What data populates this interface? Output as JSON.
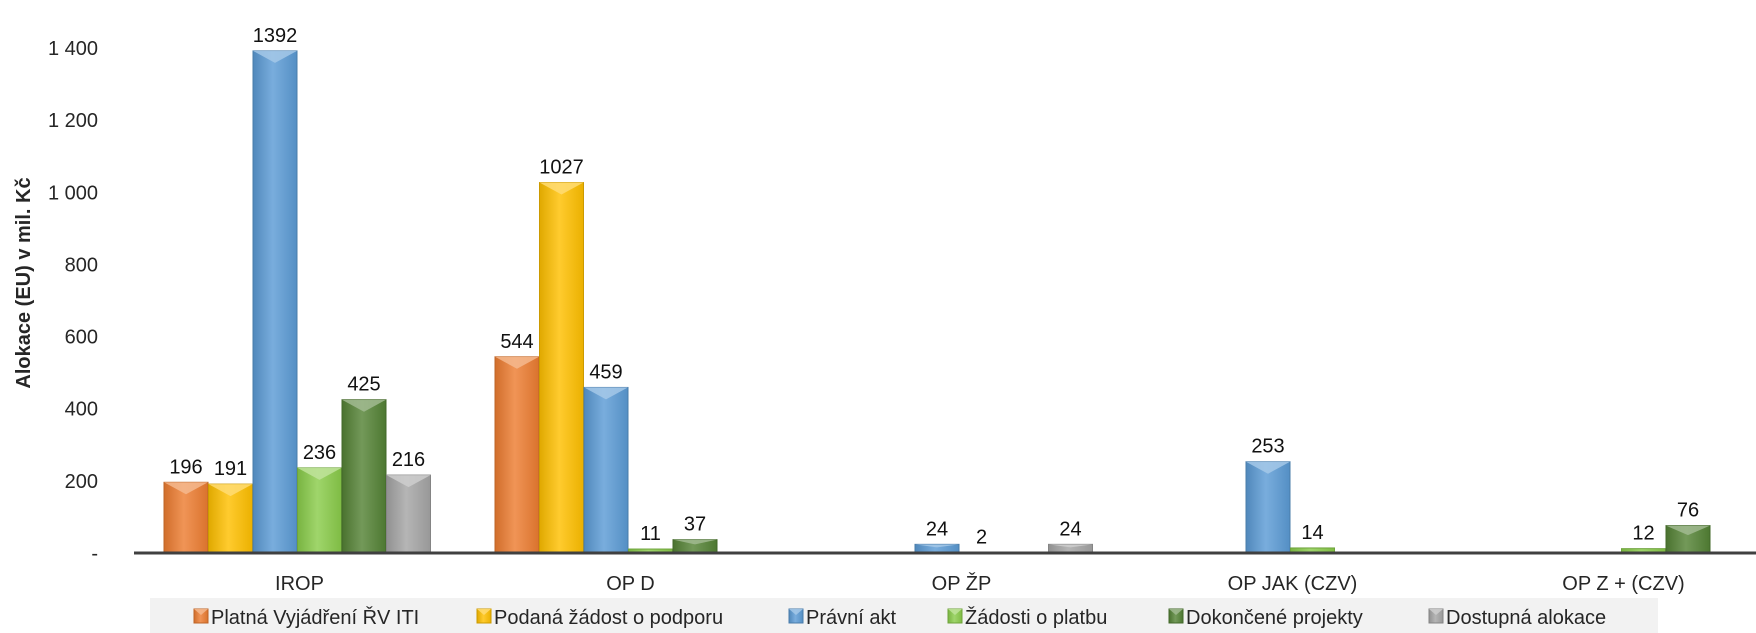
{
  "chart_data": {
    "type": "bar",
    "categories": [
      "IROP",
      "OP D",
      "OP ŽP",
      "OP JAK (CZV)",
      "OP Z + (CZV)"
    ],
    "series": [
      {
        "name": "Platná Vyjádření ŘV ITI",
        "color": "#ED7D31",
        "values": [
          196,
          544,
          null,
          null,
          null
        ],
        "labels": [
          "196",
          "544",
          null,
          null,
          null
        ]
      },
      {
        "name": "Podaná žádost o podporu",
        "color": "#FFC000",
        "values": [
          191,
          1027,
          null,
          null,
          null
        ],
        "labels": [
          "191",
          "1027",
          null,
          null,
          null
        ]
      },
      {
        "name": "Právní akt",
        "color": "#5B9BD5",
        "values": [
          1392,
          459,
          24,
          253,
          null
        ],
        "labels": [
          "1392",
          "459",
          "24",
          "253",
          null
        ]
      },
      {
        "name": "Žádosti o platbu",
        "color": "#8ACC4A",
        "values": [
          236,
          11,
          2,
          14,
          12
        ],
        "labels": [
          "236",
          "11",
          "2",
          "14",
          "12"
        ]
      },
      {
        "name": "Dokončené projekty",
        "color": "#548235",
        "values": [
          425,
          37,
          null,
          null,
          76
        ],
        "labels": [
          "425",
          "37",
          null,
          null,
          "76"
        ]
      },
      {
        "name": "Dostupná alokace",
        "color": "#A5A5A5",
        "values": [
          216,
          null,
          24,
          null,
          null
        ],
        "labels": [
          "216",
          null,
          "24",
          null,
          null
        ]
      }
    ],
    "y_axis": {
      "label": "Alokace (EU) v mil. Kč",
      "min": 0,
      "max": 1400,
      "ticks": [
        {
          "value": 0,
          "label": "-"
        },
        {
          "value": 200,
          "label": "200"
        },
        {
          "value": 400,
          "label": "400"
        },
        {
          "value": 600,
          "label": "600"
        },
        {
          "value": 800,
          "label": "800"
        },
        {
          "value": 1000,
          "label": "1 000"
        },
        {
          "value": 1200,
          "label": "1 200"
        },
        {
          "value": 1400,
          "label": "1 400"
        }
      ]
    },
    "grid": false,
    "legend_position": "bottom"
  }
}
